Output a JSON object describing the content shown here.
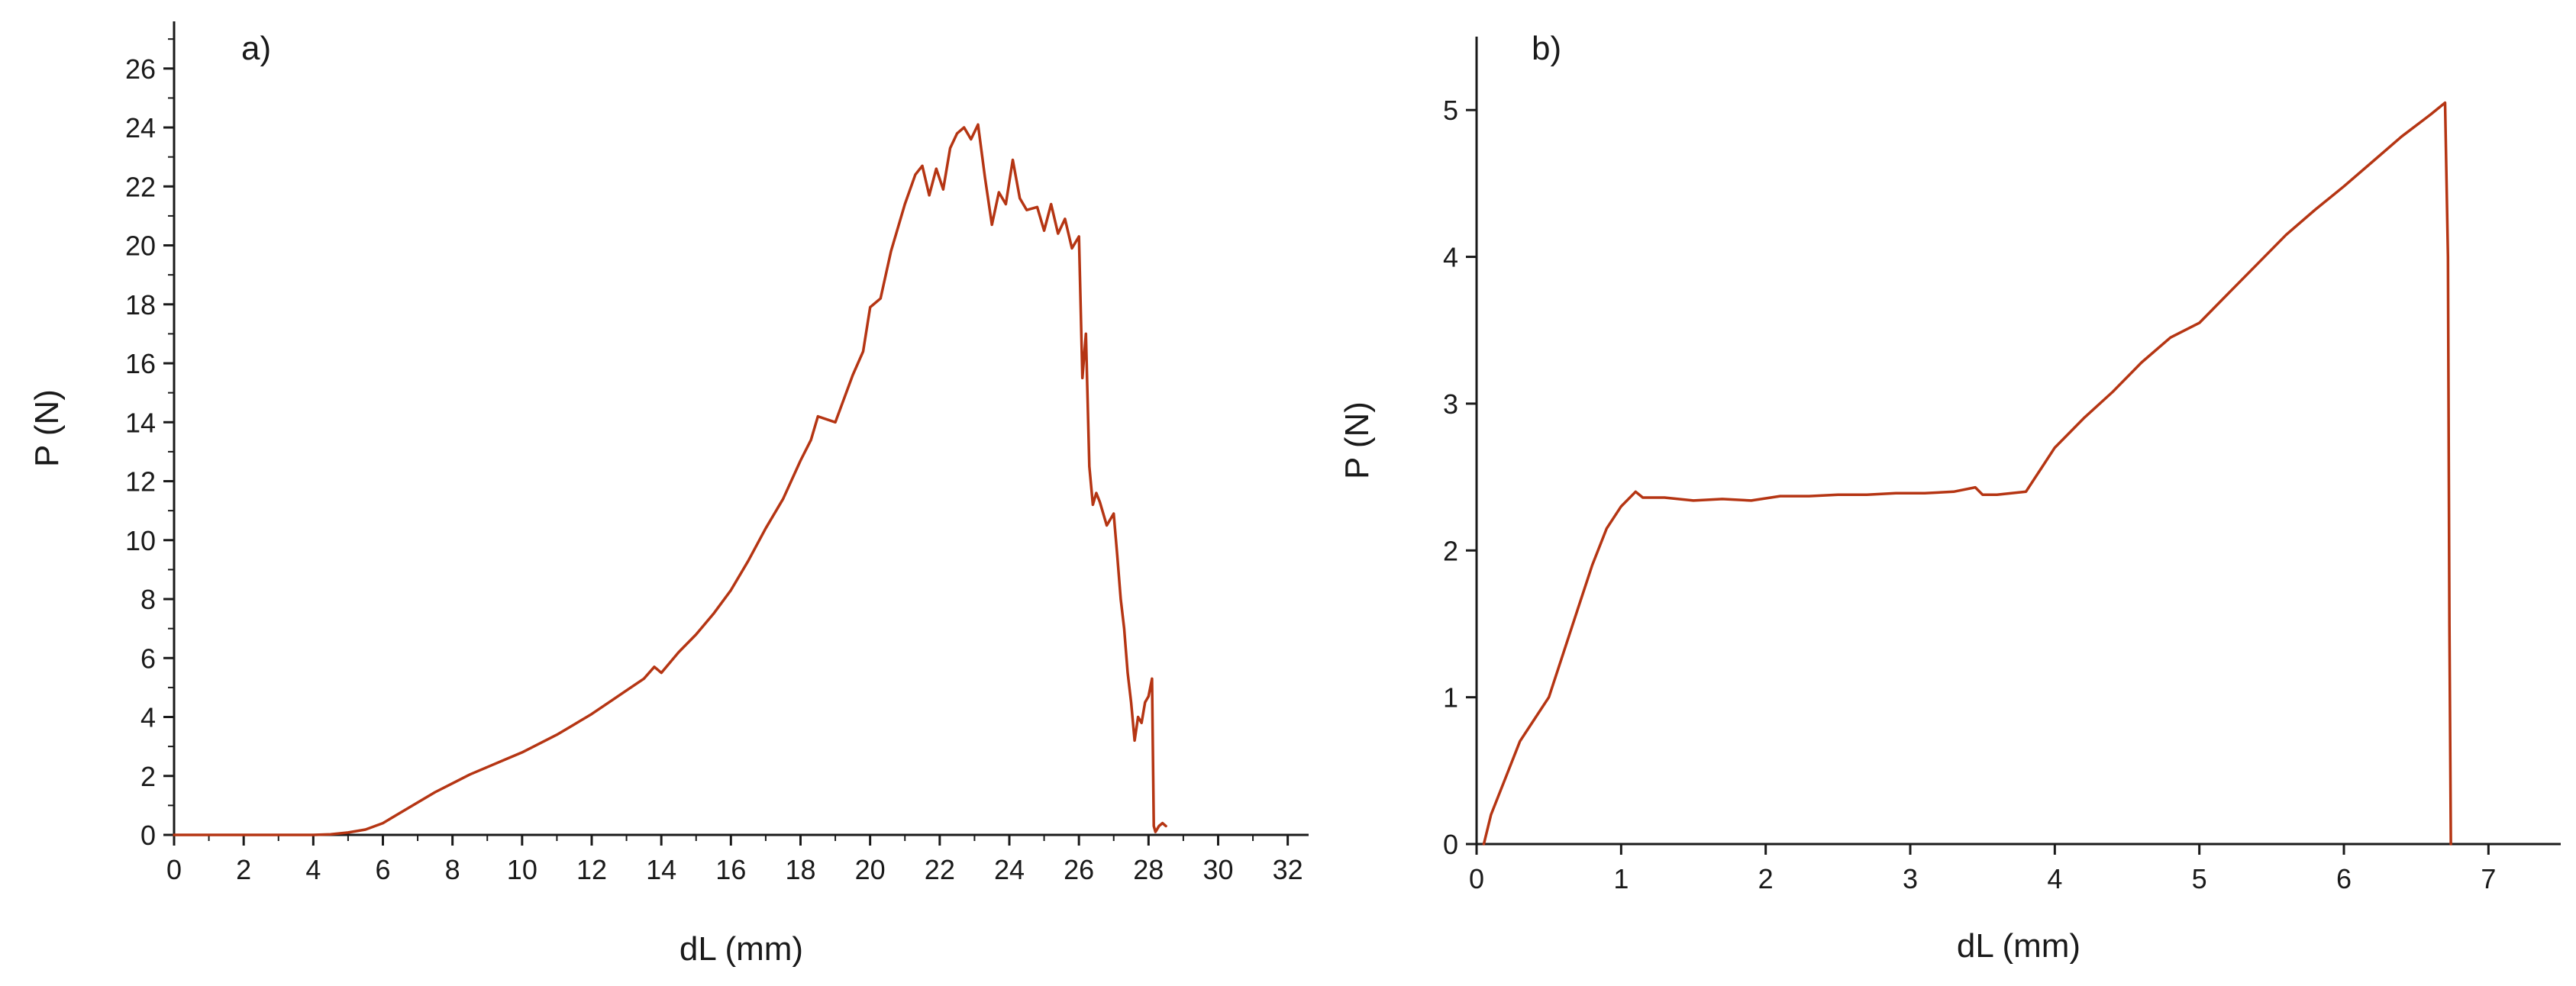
{
  "colors": {
    "line": "#b53513",
    "axis": "#1a1a1a",
    "background": "#ffffff"
  },
  "chart_data": [
    {
      "type": "line",
      "panel_label": "a)",
      "xlabel": "dL (mm)",
      "ylabel": "P (N)",
      "xlim": [
        0,
        32.6
      ],
      "ylim": [
        0,
        27.6
      ],
      "xticks": [
        0,
        2,
        4,
        6,
        8,
        10,
        12,
        14,
        16,
        18,
        20,
        22,
        24,
        26,
        28,
        30,
        32
      ],
      "yticks": [
        0,
        2,
        4,
        6,
        8,
        10,
        12,
        14,
        16,
        18,
        20,
        22,
        24,
        26
      ],
      "grid": false,
      "series": [
        {
          "x": [
            0,
            1,
            2,
            3,
            4,
            4.5,
            5,
            5.5,
            6,
            6.5,
            7,
            7.5,
            8,
            8.5,
            9,
            9.5,
            10,
            10.5,
            11,
            11.5,
            12,
            12.5,
            13,
            13.5,
            13.8,
            14,
            14.5,
            15,
            15.5,
            16,
            16.5,
            17,
            17.5,
            18,
            18.3,
            18.5,
            19,
            19.5,
            19.8,
            20,
            20.3,
            20.6,
            21,
            21.3,
            21.5,
            21.7,
            21.9,
            22.1,
            22.3,
            22.5,
            22.7,
            22.9,
            23.1,
            23.3,
            23.5,
            23.7,
            23.9,
            24.1,
            24.3,
            24.5,
            24.8,
            25,
            25.2,
            25.4,
            25.6,
            25.8,
            26,
            26.1,
            26.2,
            26.3,
            26.4,
            26.5,
            26.6,
            26.8,
            27,
            27.1,
            27.2,
            27.3,
            27.4,
            27.5,
            27.6,
            27.7,
            27.8,
            27.9,
            28,
            28.1,
            28.15,
            28.2,
            28.25,
            28.3,
            28.4,
            28.5
          ],
          "y": [
            0,
            0,
            0,
            0,
            0,
            0.02,
            0.08,
            0.18,
            0.4,
            0.75,
            1.1,
            1.45,
            1.75,
            2.05,
            2.3,
            2.55,
            2.8,
            3.1,
            3.4,
            3.75,
            4.1,
            4.5,
            4.9,
            5.3,
            5.7,
            5.5,
            6.2,
            6.8,
            7.5,
            8.3,
            9.3,
            10.4,
            11.4,
            12.7,
            13.4,
            14.2,
            14.0,
            15.6,
            16.4,
            17.9,
            18.2,
            19.8,
            21.4,
            22.4,
            22.7,
            21.7,
            22.6,
            21.9,
            23.3,
            23.8,
            24.0,
            23.6,
            24.1,
            22.3,
            20.7,
            21.8,
            21.4,
            22.9,
            21.6,
            21.2,
            21.3,
            20.5,
            21.4,
            20.4,
            20.9,
            19.9,
            20.3,
            15.5,
            17.0,
            12.5,
            11.2,
            11.6,
            11.3,
            10.5,
            10.9,
            9.5,
            8.0,
            7.0,
            5.5,
            4.5,
            3.2,
            4.0,
            3.8,
            4.5,
            4.7,
            5.3,
            0.3,
            0.1,
            0.2,
            0.3,
            0.4,
            0.3
          ]
        }
      ]
    },
    {
      "type": "line",
      "panel_label": "b)",
      "xlabel": "dL (mm)",
      "ylabel": "P (N)",
      "xlim": [
        0,
        7.5
      ],
      "ylim": [
        0,
        5.5
      ],
      "xticks": [
        0,
        1,
        2,
        3,
        4,
        5,
        6,
        7
      ],
      "yticks": [
        0,
        1,
        2,
        3,
        4,
        5
      ],
      "grid": false,
      "series": [
        {
          "x": [
            0.05,
            0.1,
            0.2,
            0.3,
            0.4,
            0.5,
            0.6,
            0.7,
            0.8,
            0.9,
            1.0,
            1.1,
            1.15,
            1.3,
            1.5,
            1.7,
            1.9,
            2.1,
            2.3,
            2.5,
            2.7,
            2.9,
            3.1,
            3.3,
            3.45,
            3.5,
            3.6,
            3.8,
            3.9,
            4.0,
            4.2,
            4.4,
            4.6,
            4.8,
            5.0,
            5.2,
            5.4,
            5.6,
            5.8,
            6.0,
            6.2,
            6.4,
            6.6,
            6.7,
            6.72,
            6.73,
            6.74
          ],
          "y": [
            0,
            0.2,
            0.45,
            0.7,
            0.85,
            1.0,
            1.3,
            1.6,
            1.9,
            2.15,
            2.3,
            2.4,
            2.36,
            2.36,
            2.34,
            2.35,
            2.34,
            2.37,
            2.37,
            2.38,
            2.38,
            2.39,
            2.39,
            2.4,
            2.43,
            2.38,
            2.38,
            2.4,
            2.55,
            2.7,
            2.9,
            3.08,
            3.28,
            3.45,
            3.55,
            3.75,
            3.95,
            4.15,
            4.32,
            4.48,
            4.65,
            4.82,
            4.97,
            5.05,
            4.0,
            1.5,
            0
          ]
        }
      ]
    }
  ]
}
